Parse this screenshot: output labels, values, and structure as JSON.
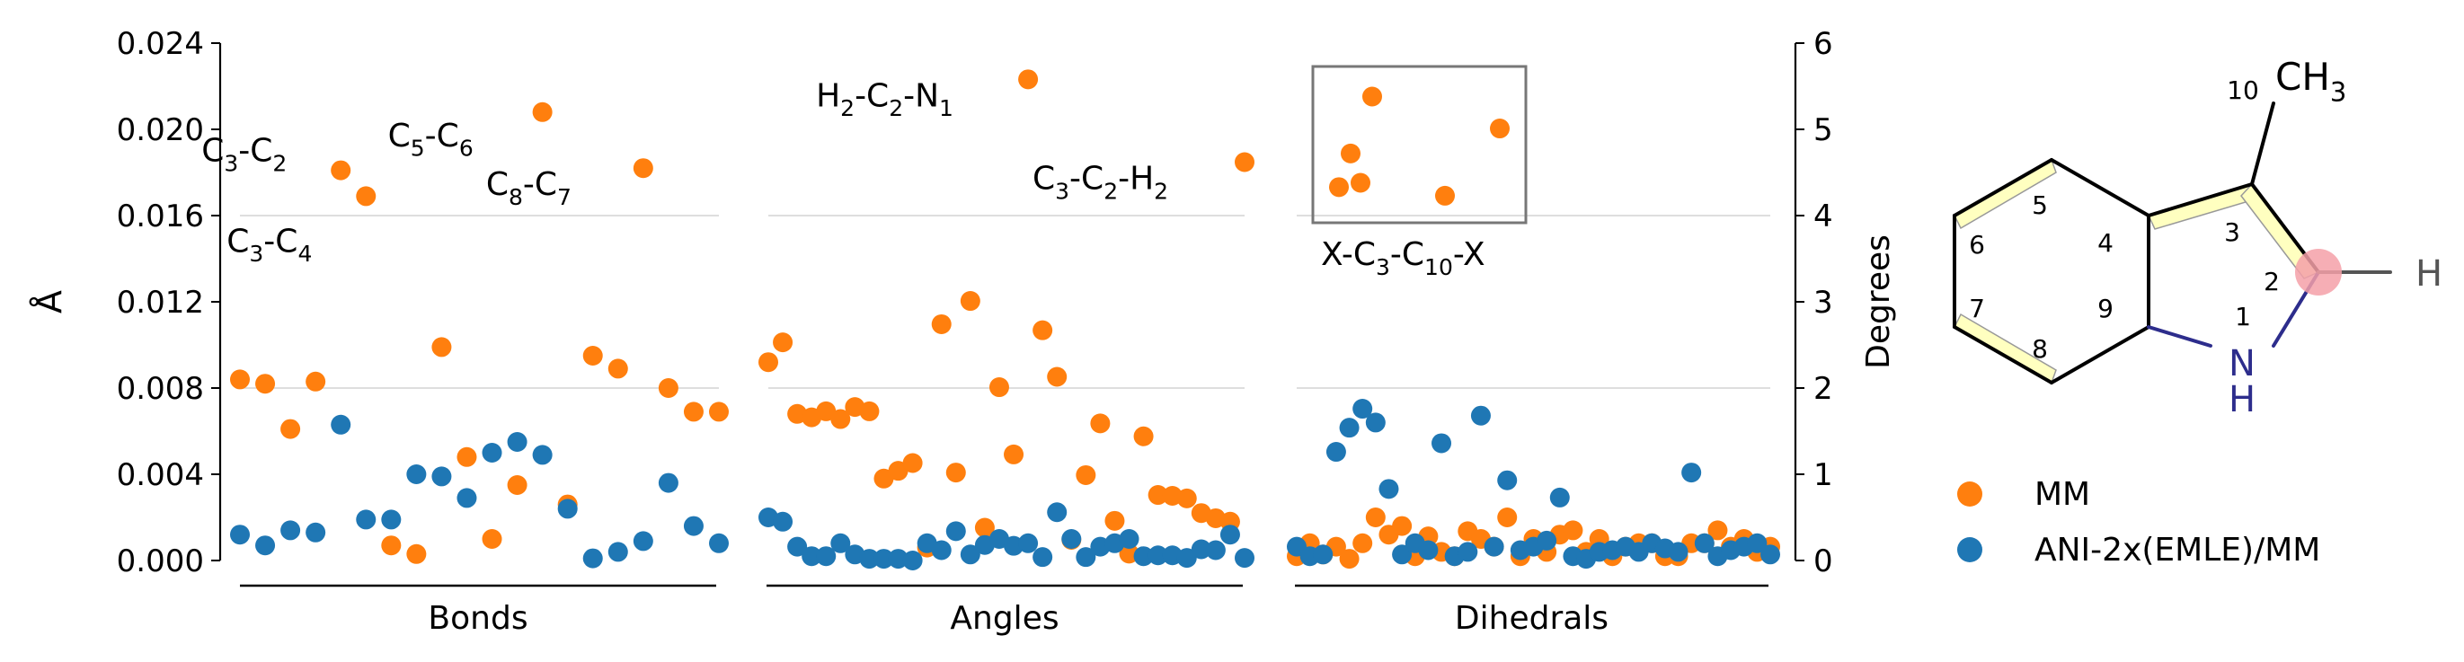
{
  "chart_data": {
    "type": "scatter",
    "ylabel_left": "Å",
    "ylabel_right": "Degrees",
    "ylim_left": [
      0,
      0.024
    ],
    "ylim_right": [
      0,
      6
    ],
    "yticks_left": [
      "0.000",
      "0.004",
      "0.008",
      "0.012",
      "0.016",
      "0.020",
      "0.024"
    ],
    "yticks_right": [
      "0",
      "1",
      "2",
      "3",
      "4",
      "5",
      "6"
    ],
    "colors": {
      "mm": "#ff7f0e",
      "ani": "#1f77b4"
    },
    "legend": {
      "mm": "MM",
      "ani": "ANI-2x(EMLE)/MM"
    },
    "groups": [
      {
        "name": "Bonds",
        "axis": "left",
        "mm": [
          0.0084,
          0.0082,
          0.0061,
          0.0083,
          0.0181,
          0.0169,
          0.0007,
          0.0003,
          0.0099,
          0.0048,
          0.001,
          0.0035,
          0.0208,
          0.0026,
          0.0095,
          0.0089,
          0.0182,
          0.008,
          0.0069,
          0.0069
        ],
        "ani": [
          0.0012,
          0.0007,
          0.0014,
          0.0013,
          0.0063,
          0.0019,
          0.0019,
          0.004,
          0.0039,
          0.0029,
          0.005,
          0.0055,
          0.0049,
          0.0024,
          0.0001,
          0.0004,
          0.0009,
          0.0036,
          0.0016,
          0.0008
        ],
        "annotations": [
          {
            "parts": [
              "C",
              "3",
              "-C",
              "2"
            ],
            "index": 4
          },
          {
            "parts": [
              "C",
              "3",
              "-C",
              "4"
            ],
            "index": 5
          },
          {
            "parts": [
              "C",
              "5",
              "-C",
              "6"
            ],
            "index": 12
          },
          {
            "parts": [
              "C",
              "8",
              "-C",
              "7"
            ],
            "index": 16
          }
        ]
      },
      {
        "name": "Angles",
        "axis": "right",
        "mm": [
          2.3,
          2.53,
          1.7,
          1.66,
          1.73,
          1.64,
          1.78,
          1.73,
          0.95,
          1.04,
          1.13,
          0.15,
          2.74,
          1.02,
          3.01,
          0.38,
          2.01,
          1.23,
          5.58,
          2.67,
          2.13,
          0.24,
          0.99,
          1.59,
          0.46,
          0.08,
          1.44,
          0.76,
          0.75,
          0.72,
          0.55,
          0.49,
          0.45,
          4.62
        ],
        "ani": [
          0.5,
          0.45,
          0.16,
          0.05,
          0.05,
          0.2,
          0.07,
          0.02,
          0.02,
          0.02,
          0.0,
          0.2,
          0.12,
          0.34,
          0.07,
          0.18,
          0.25,
          0.17,
          0.2,
          0.04,
          0.56,
          0.25,
          0.04,
          0.16,
          0.2,
          0.25,
          0.05,
          0.06,
          0.06,
          0.03,
          0.13,
          0.12,
          0.3,
          0.03
        ],
        "annotations": [
          {
            "parts": [
              "H",
              "2",
              "-C",
              "2",
              "-N",
              "1"
            ],
            "index": 18
          },
          {
            "parts": [
              "C",
              "3",
              "-C",
              "2",
              "-H",
              "2"
            ],
            "index": 33
          }
        ]
      },
      {
        "name": "Dihedrals",
        "axis": "right",
        "boxed": {
          "label_parts": [
            "X-C",
            "3",
            "-C",
            "10",
            "-X"
          ],
          "mm": [
            4.33,
            4.72,
            4.38,
            5.38,
            4.23,
            5.01
          ]
        },
        "mm": [
          0.05,
          0.2,
          0.07,
          0.16,
          0.02,
          0.2,
          0.5,
          0.3,
          0.4,
          0.05,
          0.28,
          0.1,
          0.05,
          0.34,
          0.25,
          0.16,
          0.5,
          0.05,
          0.25,
          0.1,
          0.3,
          0.35,
          0.1,
          0.25,
          0.05,
          0.16,
          0.2,
          0.2,
          0.05,
          0.05,
          0.2,
          0.2,
          0.35,
          0.16,
          0.25,
          0.1,
          0.16
        ],
        "ani": [
          0.16,
          0.05,
          0.07,
          1.26,
          1.54,
          1.76,
          1.6,
          0.83,
          0.07,
          0.2,
          0.12,
          1.36,
          0.05,
          0.1,
          1.68,
          0.16,
          0.93,
          0.12,
          0.16,
          0.23,
          0.73,
          0.05,
          0.02,
          0.1,
          0.12,
          0.16,
          0.1,
          0.2,
          0.14,
          0.1,
          1.02,
          0.2,
          0.05,
          0.12,
          0.16,
          0.2,
          0.07
        ]
      }
    ]
  },
  "molecule": {
    "ring_numbers": [
      "1",
      "2",
      "3",
      "4",
      "5",
      "6",
      "7",
      "8",
      "9"
    ],
    "methyl_number": "10",
    "methyl_label": "CH",
    "methyl_sub": "3",
    "n_label": "N",
    "nh_label": "H",
    "h_label": "H"
  }
}
